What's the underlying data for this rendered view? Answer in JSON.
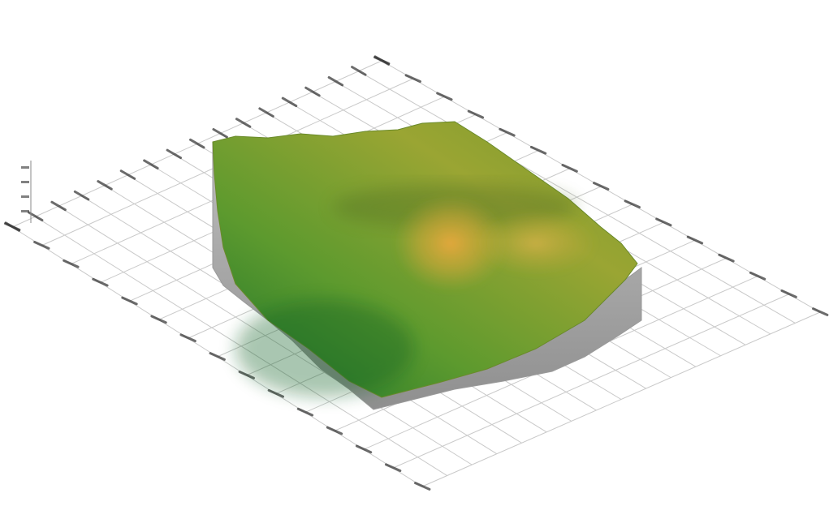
{
  "scene": {
    "kind": "3d-terrain-surface",
    "surface_colors": {
      "low": "#1d7a2c",
      "mid": "#7aa32f",
      "high": "#e0a93a",
      "side_wall": "#a9a9a9"
    },
    "grid_color": "#c9c9c9",
    "tick_label_color": "#2d2d2d",
    "icons": [
      "mound-peak",
      "terrain-edge-wall",
      "grid-plane"
    ]
  }
}
